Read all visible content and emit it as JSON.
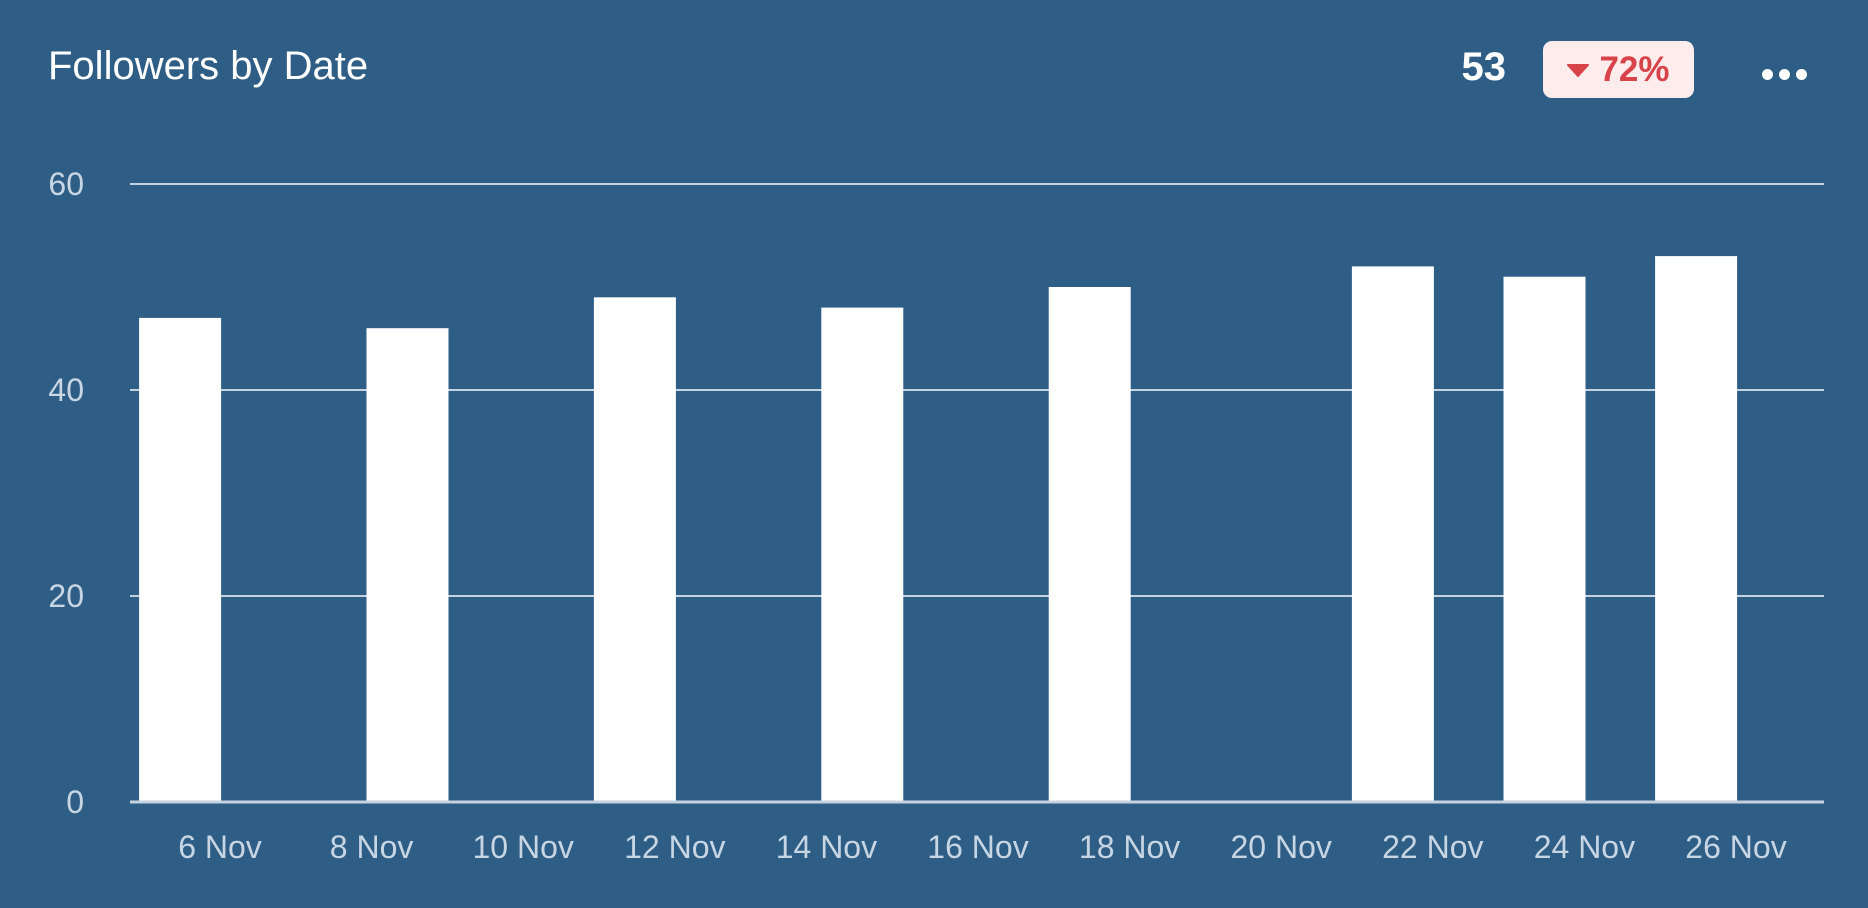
{
  "header": {
    "title": "Followers by Date",
    "stat_value": "53",
    "change_percent": "72%",
    "change_direction": "down",
    "menu_icon": "more-horizontal-icon"
  },
  "colors": {
    "background": "#2e5e86",
    "bar": "#ffffff",
    "grid": "#c5d3e0",
    "badge_bg": "#fdecec",
    "badge_text": "#d8434a"
  },
  "chart_data": {
    "type": "bar",
    "title": "Followers by Date",
    "xlabel": "",
    "ylabel": "",
    "ylim": [
      0,
      60
    ],
    "yticks": [
      0,
      20,
      40,
      60
    ],
    "grid": true,
    "x_tick_labels": [
      "6 Nov",
      "8 Nov",
      "10 Nov",
      "12 Nov",
      "14 Nov",
      "16 Nov",
      "18 Nov",
      "20 Nov",
      "22 Nov",
      "24 Nov",
      "26 Nov"
    ],
    "x_range": [
      "5 Nov",
      "27 Nov"
    ],
    "bars": [
      {
        "date": "5.5 Nov",
        "value": 47
      },
      {
        "date": "8.5 Nov",
        "value": 46
      },
      {
        "date": "11.5 Nov",
        "value": 49
      },
      {
        "date": "14.5 Nov",
        "value": 48
      },
      {
        "date": "17.5 Nov",
        "value": 50
      },
      {
        "date": "21.5 Nov",
        "value": 52
      },
      {
        "date": "23.5 Nov",
        "value": 51
      },
      {
        "date": "25.5 Nov",
        "value": 53
      }
    ]
  }
}
